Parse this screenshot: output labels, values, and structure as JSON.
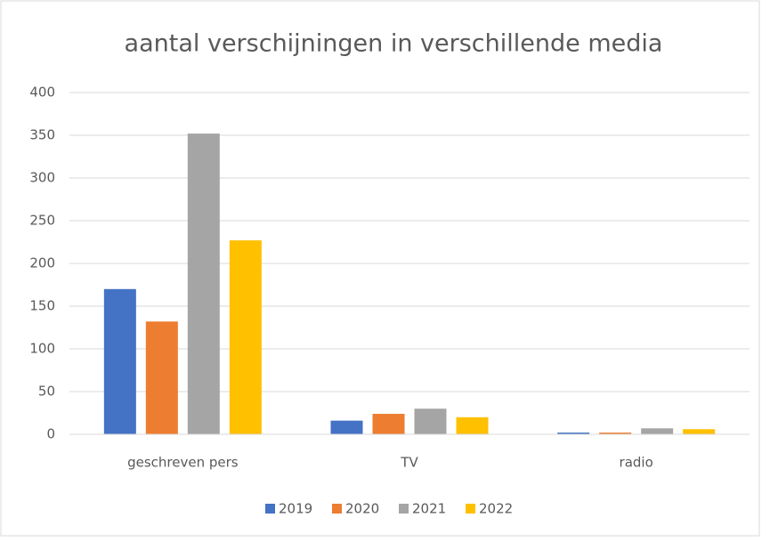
{
  "chart_data": {
    "type": "bar",
    "title": "aantal verschijningen in verschillende media",
    "categories": [
      "geschreven pers",
      "TV",
      "radio"
    ],
    "series": [
      {
        "name": "2019",
        "color": "#4472c4",
        "values": [
          170,
          16,
          2
        ]
      },
      {
        "name": "2020",
        "color": "#ed7d31",
        "values": [
          132,
          24,
          2
        ]
      },
      {
        "name": "2021",
        "color": "#a5a5a5",
        "values": [
          352,
          30,
          7
        ]
      },
      {
        "name": "2022",
        "color": "#ffc000",
        "values": [
          227,
          20,
          6
        ]
      }
    ],
    "ylim": [
      0,
      400
    ],
    "yticks": [
      0,
      50,
      100,
      150,
      200,
      250,
      300,
      350,
      400
    ],
    "grid": true,
    "legend": "bottom"
  }
}
